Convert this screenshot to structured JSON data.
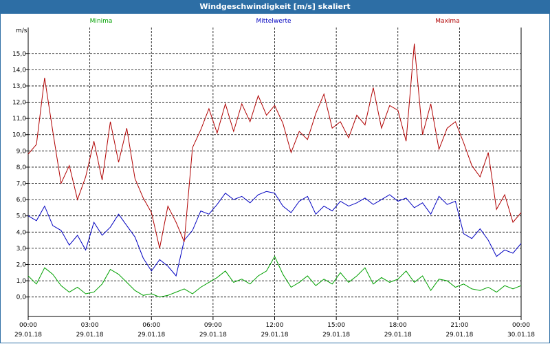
{
  "window": {
    "title": "Windgeschwindigkeit [m/s] skaliert"
  },
  "chart_data": {
    "type": "line",
    "title": "Windgeschwindigkeit [m/s] skaliert",
    "ylabel": "m/s",
    "xlabel": "",
    "ylim": [
      -1.2,
      16.6
    ],
    "xlim": [
      0,
      24
    ],
    "grid": true,
    "yticks": [
      0,
      1,
      2,
      3,
      4,
      5,
      6,
      7,
      8,
      9,
      10,
      11,
      12,
      13,
      14,
      15
    ],
    "ytick_labels": [
      "0,0",
      "1,0",
      "2,0",
      "3,0",
      "4,0",
      "5,0",
      "6,0",
      "7,0",
      "8,0",
      "9,0",
      "10,0",
      "11,0",
      "12,0",
      "13,0",
      "14,0",
      "15,0"
    ],
    "xticks": [
      0,
      3,
      6,
      9,
      12,
      15,
      18,
      21,
      24
    ],
    "xtick_labels": [
      {
        "time": "00:00",
        "date": "29.01.18"
      },
      {
        "time": "03:00",
        "date": "29.01.18"
      },
      {
        "time": "06:00",
        "date": "29.01.18"
      },
      {
        "time": "09:00",
        "date": "29.01.18"
      },
      {
        "time": "12:00",
        "date": "29.01.18"
      },
      {
        "time": "15:00",
        "date": "29.01.18"
      },
      {
        "time": "18:00",
        "date": "29.01.18"
      },
      {
        "time": "21:00",
        "date": "29.01.18"
      },
      {
        "time": "00:00",
        "date": "30.01.18"
      }
    ],
    "series": [
      {
        "name": "Minima",
        "color": "#00a000",
        "x": [
          0,
          0.4,
          0.8,
          1.2,
          1.6,
          2,
          2.4,
          2.8,
          3.2,
          3.6,
          4,
          4.4,
          4.8,
          5.2,
          5.6,
          6,
          6.4,
          6.8,
          7.2,
          7.6,
          8,
          8.4,
          8.8,
          9.2,
          9.6,
          10,
          10.4,
          10.8,
          11.2,
          11.6,
          12,
          12.4,
          12.8,
          13.2,
          13.6,
          14,
          14.4,
          14.8,
          15.2,
          15.6,
          16,
          16.4,
          16.8,
          17.2,
          17.6,
          18,
          18.4,
          18.8,
          19.2,
          19.6,
          20,
          20.4,
          20.8,
          21.2,
          21.6,
          22,
          22.4,
          22.8,
          23.2,
          23.6,
          24
        ],
        "values": [
          1.3,
          0.8,
          1.8,
          1.4,
          0.7,
          0.3,
          0.6,
          0.2,
          0.3,
          0.8,
          1.7,
          1.4,
          0.9,
          0.4,
          0.1,
          0.2,
          0.0,
          0.1,
          0.3,
          0.5,
          0.2,
          0.6,
          0.9,
          1.2,
          1.6,
          0.9,
          1.1,
          0.8,
          1.3,
          1.6,
          2.5,
          1.4,
          0.6,
          0.9,
          1.3,
          0.7,
          1.1,
          0.8,
          1.5,
          0.9,
          1.3,
          1.8,
          0.8,
          1.2,
          0.9,
          1.1,
          1.6,
          0.9,
          1.3,
          0.4,
          1.1,
          1.0,
          0.6,
          0.8,
          0.5,
          0.4,
          0.6,
          0.3,
          0.7,
          0.5,
          0.7
        ]
      },
      {
        "name": "Mittelwerte",
        "color": "#0000c0",
        "x": [
          0,
          0.4,
          0.8,
          1.2,
          1.6,
          2,
          2.4,
          2.8,
          3.2,
          3.6,
          4,
          4.4,
          4.8,
          5.2,
          5.6,
          6,
          6.4,
          6.8,
          7.2,
          7.6,
          8,
          8.4,
          8.8,
          9.2,
          9.6,
          10,
          10.4,
          10.8,
          11.2,
          11.6,
          12,
          12.4,
          12.8,
          13.2,
          13.6,
          14,
          14.4,
          14.8,
          15.2,
          15.6,
          16,
          16.4,
          16.8,
          17.2,
          17.6,
          18,
          18.4,
          18.8,
          19.2,
          19.6,
          20,
          20.4,
          20.8,
          21.2,
          21.6,
          22,
          22.4,
          22.8,
          23.2,
          23.6,
          24
        ],
        "values": [
          5.0,
          4.7,
          5.6,
          4.4,
          4.1,
          3.2,
          3.8,
          2.9,
          4.6,
          3.8,
          4.3,
          5.1,
          4.4,
          3.7,
          2.4,
          1.6,
          2.3,
          1.9,
          1.3,
          3.5,
          4.1,
          5.3,
          5.1,
          5.7,
          6.4,
          6.0,
          6.2,
          5.8,
          6.3,
          6.5,
          6.4,
          5.6,
          5.2,
          5.9,
          6.2,
          5.1,
          5.6,
          5.3,
          5.9,
          5.6,
          5.8,
          6.1,
          5.7,
          6.0,
          6.3,
          5.9,
          6.1,
          5.5,
          5.8,
          5.1,
          6.2,
          5.7,
          5.9,
          3.9,
          3.6,
          4.2,
          3.5,
          2.5,
          2.9,
          2.7,
          3.3
        ]
      },
      {
        "name": "Maxima",
        "color": "#b00000",
        "x": [
          0,
          0.4,
          0.8,
          1.2,
          1.6,
          2,
          2.4,
          2.8,
          3.2,
          3.6,
          4,
          4.4,
          4.8,
          5.2,
          5.6,
          6,
          6.4,
          6.8,
          7.2,
          7.6,
          8,
          8.4,
          8.8,
          9.2,
          9.6,
          10,
          10.4,
          10.8,
          11.2,
          11.6,
          12,
          12.4,
          12.8,
          13.2,
          13.6,
          14,
          14.4,
          14.8,
          15.2,
          15.6,
          16,
          16.4,
          16.8,
          17.2,
          17.6,
          18,
          18.4,
          18.8,
          19.2,
          19.6,
          20,
          20.4,
          20.8,
          21.2,
          21.6,
          22,
          22.4,
          22.8,
          23.2,
          23.6,
          24
        ],
        "values": [
          8.8,
          9.4,
          13.5,
          10.2,
          7.0,
          8.1,
          6.0,
          7.4,
          9.6,
          7.2,
          10.8,
          8.3,
          10.4,
          7.3,
          6.1,
          5.2,
          3.0,
          5.6,
          4.6,
          3.4,
          9.2,
          10.3,
          11.6,
          10.1,
          11.9,
          10.2,
          11.9,
          10.8,
          12.4,
          11.2,
          11.8,
          10.7,
          8.9,
          10.2,
          9.7,
          11.3,
          12.5,
          10.4,
          10.8,
          9.8,
          11.2,
          10.6,
          12.9,
          10.4,
          11.8,
          11.5,
          9.6,
          15.6,
          10.0,
          11.9,
          9.1,
          10.4,
          10.8,
          9.5,
          8.1,
          7.4,
          8.9,
          5.4,
          6.3,
          4.6,
          5.2
        ]
      }
    ]
  }
}
